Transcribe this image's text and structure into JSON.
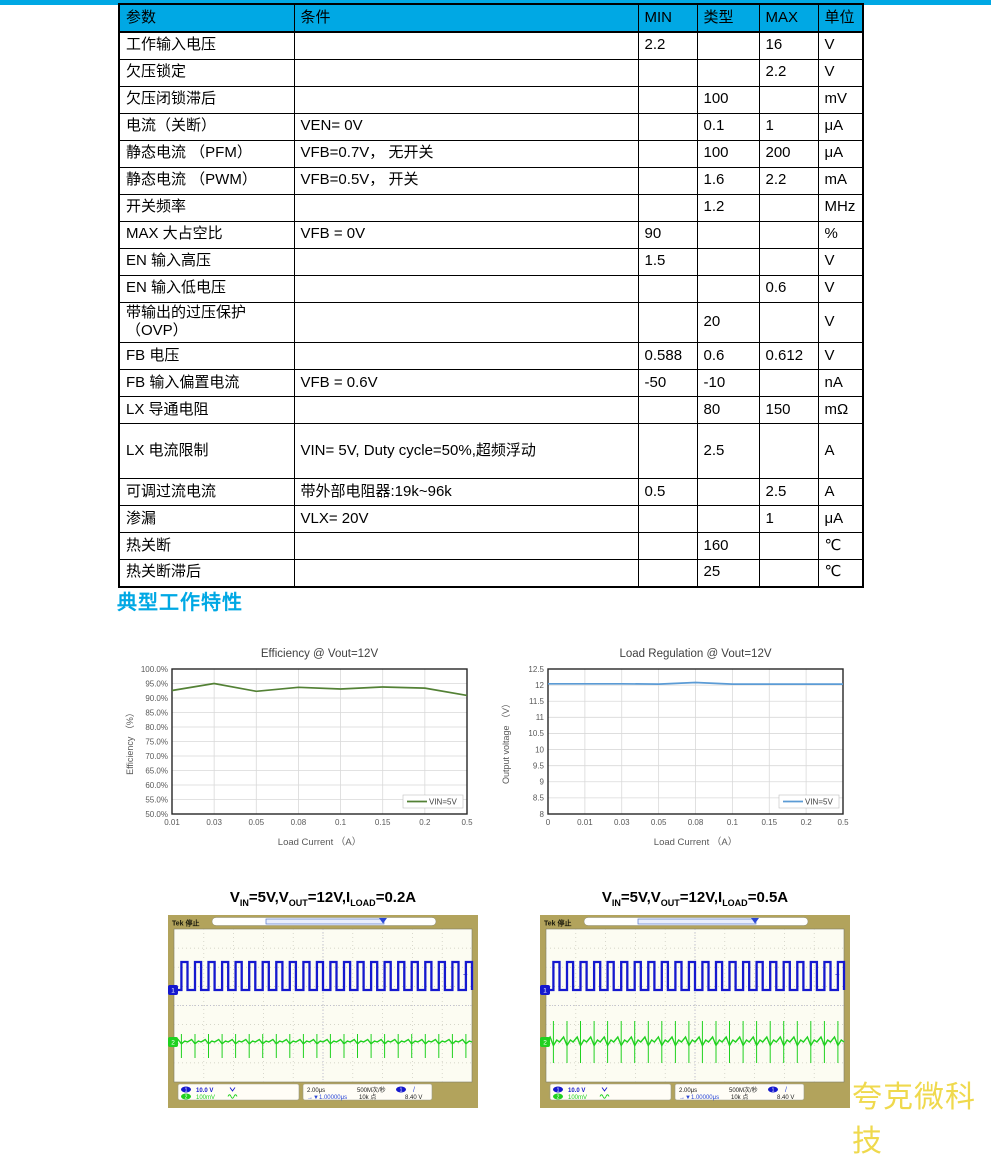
{
  "accent_color": "#00A8E4",
  "watermark_color": "#EFD94D",
  "section_title": "典型工作特性",
  "watermark": "夸克微科技",
  "table": {
    "headers": [
      "参数",
      "条件",
      "MIN",
      "类型",
      "MAX",
      "单位"
    ],
    "tall_row_index": 14,
    "rows": [
      [
        "工作输入电压",
        "",
        "2.2",
        "",
        "16",
        "V"
      ],
      [
        "欠压锁定",
        "",
        "",
        "",
        "2.2",
        "V"
      ],
      [
        "欠压闭锁滞后",
        "",
        "",
        "100",
        "",
        "mV"
      ],
      [
        "电流（关断）",
        "VEN= 0V",
        "",
        "0.1",
        "1",
        "μA"
      ],
      [
        "静态电流 （PFM）",
        "VFB=0.7V， 无开关",
        "",
        "100",
        "200",
        "μA"
      ],
      [
        "静态电流 （PWM）",
        "VFB=0.5V， 开关",
        "",
        "1.6",
        "2.2",
        "mA"
      ],
      [
        "开关频率",
        "",
        "",
        "1.2",
        "",
        "MHz"
      ],
      [
        "MAX 大占空比",
        "VFB = 0V",
        "90",
        "",
        "",
        "%"
      ],
      [
        "EN 输入高压",
        "",
        "1.5",
        "",
        "",
        "V"
      ],
      [
        "EN 输入低电压",
        "",
        "",
        "",
        "0.6",
        "V"
      ],
      [
        "带输出的过压保护 （OVP）",
        "",
        "",
        "20",
        "",
        "V"
      ],
      [
        "FB 电压",
        "",
        "0.588",
        "0.6",
        "0.612",
        "V"
      ],
      [
        "FB 输入偏置电流",
        "VFB = 0.6V",
        "-50",
        "-10",
        "",
        "nA"
      ],
      [
        "LX 导通电阻",
        "",
        "",
        "80",
        "150",
        "mΩ"
      ],
      [
        "LX 电流限制",
        "VIN= 5V, Duty cycle=50%,超频浮动",
        "",
        "2.5",
        "",
        "A"
      ],
      [
        "可调过流电流",
        "带外部电阻器:19k~96k",
        "0.5",
        "",
        "2.5",
        "A"
      ],
      [
        "渗漏",
        "VLX= 20V",
        "",
        "",
        "1",
        "μA"
      ],
      [
        "热关断",
        "",
        "",
        "160",
        "",
        "℃"
      ],
      [
        "热关断滞后",
        "",
        "",
        "25",
        "",
        "℃"
      ]
    ]
  },
  "chart_data": [
    {
      "type": "line",
      "title": "Efficiency @ Vout=12V",
      "xlabel": "Load Current （A）",
      "ylabel": "Efficiency （%）",
      "categories": [
        "0.01",
        "0.03",
        "0.05",
        "0.08",
        "0.1",
        "0.15",
        "0.2",
        "0.5"
      ],
      "series": [
        {
          "name": "VIN=5V",
          "color": "#538135",
          "values": [
            92.6,
            95.0,
            92.3,
            93.7,
            93.1,
            93.8,
            93.4,
            90.9
          ]
        }
      ],
      "ylim": [
        50,
        100
      ],
      "ytick_step": 5,
      "ytick_format": "percent",
      "grid": true,
      "legend_position": "bottom-right"
    },
    {
      "type": "line",
      "title": "Load Regulation @ Vout=12V",
      "xlabel": "Load Current （A）",
      "ylabel": "Output voltage （V）",
      "categories": [
        "0",
        "0.01",
        "0.03",
        "0.05",
        "0.08",
        "0.1",
        "0.15",
        "0.2",
        "0.5"
      ],
      "series": [
        {
          "name": "VIN=5V",
          "color": "#5B9BD5",
          "values": [
            12.04,
            12.04,
            12.04,
            12.03,
            12.08,
            12.03,
            12.03,
            12.03,
            12.03
          ]
        }
      ],
      "ylim": [
        8,
        12.5
      ],
      "ytick_step": 0.5,
      "ytick_format": "plain",
      "grid": true,
      "legend_position": "bottom-right"
    }
  ],
  "scopes": [
    {
      "caption_segments": [
        [
          "V",
          "IN"
        ],
        [
          "=5V,V",
          "OUT"
        ],
        [
          "=12V,I",
          "LOAD"
        ],
        [
          "=0.2A",
          ""
        ]
      ],
      "status_label": "Tek 停止",
      "ch1_badge": "1",
      "ch1_scale": "10.0 V",
      "ch1_color": "#1518CF",
      "ch2_badge": "2",
      "ch2_scale": "100mV",
      "ch2_color": "#1FD11F",
      "time_scale": "2.00μs",
      "sample_rate": "500M次/秒",
      "delay": "1.00000μs",
      "record_length": "10k 点",
      "trigger_badge": "1",
      "trigger_level": "8.40 V",
      "icons": {
        "trigger_marker": "T",
        "slope_rising": "/",
        "plus_marker": "+"
      },
      "wave": {
        "periods": 22,
        "hi": 47,
        "lo": 75,
        "base": 127,
        "amp": 2.5,
        "spike_up": 8,
        "spike_down": 16
      }
    },
    {
      "caption_segments": [
        [
          "V",
          "IN"
        ],
        [
          "=5V,V",
          "OUT"
        ],
        [
          "=12V,I",
          "LOAD"
        ],
        [
          "=0.5A",
          ""
        ]
      ],
      "status_label": "Tek 停止",
      "ch1_badge": "1",
      "ch1_scale": "10.0 V",
      "ch1_color": "#1518CF",
      "ch2_badge": "2",
      "ch2_scale": "100mV",
      "ch2_color": "#1FD11F",
      "time_scale": "2.00μs",
      "sample_rate": "500M次/秒",
      "delay": "1.00000μs",
      "record_length": "10k 点",
      "trigger_badge": "1",
      "trigger_level": "8.40 V",
      "icons": {
        "trigger_marker": "T",
        "slope_rising": "/",
        "plus_marker": "+"
      },
      "wave": {
        "periods": 22,
        "hi": 47,
        "lo": 75,
        "base": 127,
        "amp": 5,
        "spike_up": 21,
        "spike_down": 21
      }
    }
  ]
}
